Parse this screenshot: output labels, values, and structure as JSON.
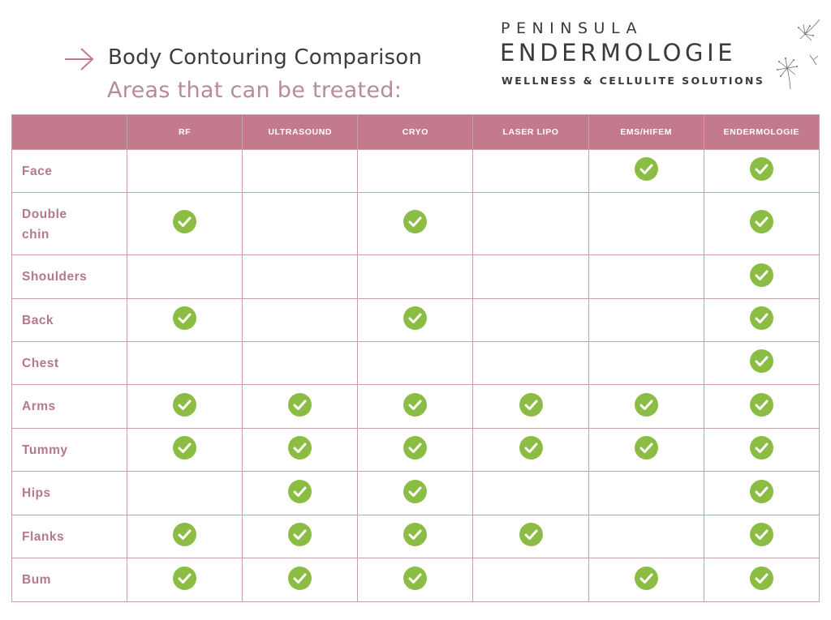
{
  "header": {
    "title": "Body Contouring Comparison",
    "subtitle": "Areas that can be treated:",
    "arrow_icon": "right-arrow-icon"
  },
  "brand": {
    "line1": "PENINSULA",
    "line2": "ENDERMOLOGIE",
    "tagline": "WELLNESS & CELLULITE SOLUTIONS",
    "icon": "dandelion-icon"
  },
  "colors": {
    "header_bg": "#c47a8d",
    "row_label": "#b4788e",
    "check": "#8bbd44",
    "subtitle": "#b98a9f"
  },
  "table": {
    "columns": [
      "RF",
      "ULTRASOUND",
      "CRYO",
      "LASER LIPO",
      "EMS/HIFEM",
      "ENDERMOLOGIE"
    ],
    "rows": [
      {
        "label": [
          "Face"
        ],
        "checks": [
          false,
          false,
          false,
          false,
          true,
          true
        ]
      },
      {
        "label": [
          "Double",
          "chin"
        ],
        "checks": [
          true,
          false,
          true,
          false,
          false,
          true
        ]
      },
      {
        "label": [
          "Shoulders"
        ],
        "checks": [
          false,
          false,
          false,
          false,
          false,
          true
        ]
      },
      {
        "label": [
          "Back"
        ],
        "checks": [
          true,
          false,
          true,
          false,
          false,
          true
        ]
      },
      {
        "label": [
          "Chest"
        ],
        "checks": [
          false,
          false,
          false,
          false,
          false,
          true
        ]
      },
      {
        "label": [
          "Arms"
        ],
        "checks": [
          true,
          true,
          true,
          true,
          true,
          true
        ]
      },
      {
        "label": [
          "Tummy"
        ],
        "checks": [
          true,
          true,
          true,
          true,
          true,
          true
        ]
      },
      {
        "label": [
          "Hips"
        ],
        "checks": [
          false,
          true,
          true,
          false,
          false,
          true
        ]
      },
      {
        "label": [
          "Flanks"
        ],
        "checks": [
          true,
          true,
          true,
          true,
          false,
          true
        ]
      },
      {
        "label": [
          "Bum"
        ],
        "checks": [
          true,
          true,
          true,
          false,
          true,
          true
        ]
      }
    ]
  }
}
